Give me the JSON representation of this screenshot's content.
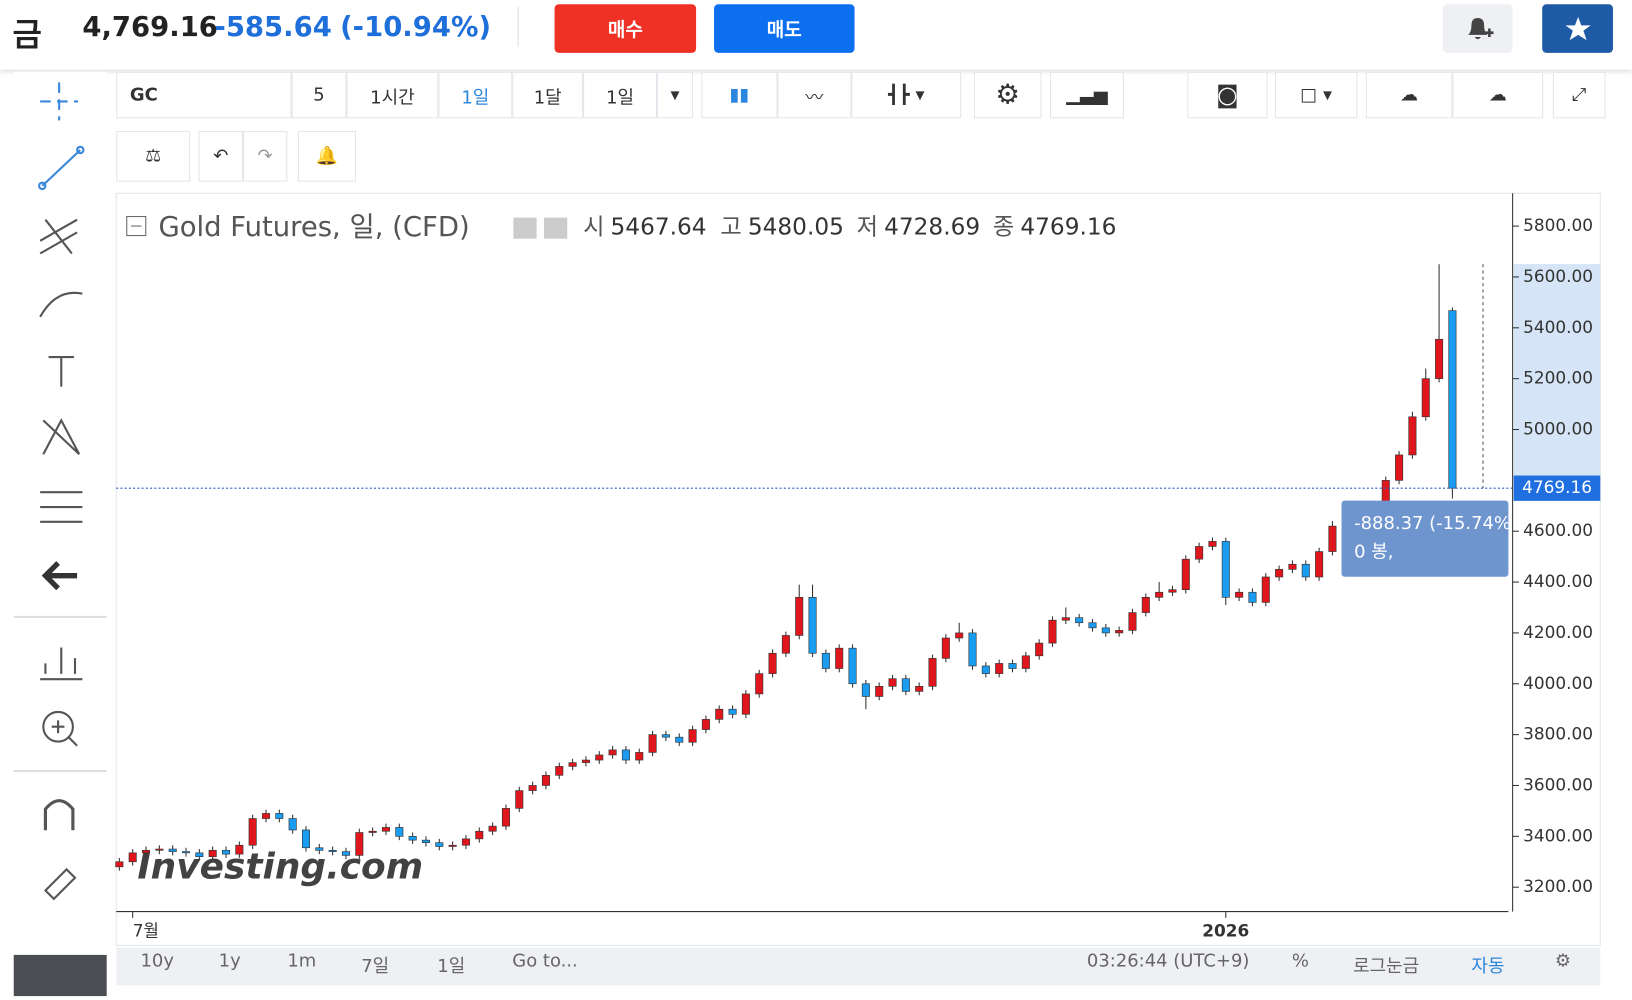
{
  "header": {
    "symbol": "금",
    "price": "4,769.16",
    "change": "-585.64",
    "change_pct": "(-10.94%)",
    "buy": "매수",
    "sell": "매도"
  },
  "toolbar": {
    "symbol": "GC",
    "items": [
      "5",
      "1시간",
      "1일",
      "1달",
      "1일"
    ]
  },
  "bottom_bar": {
    "ranges": [
      "10y",
      "1y",
      "1m",
      "7일",
      "1일",
      "Go to..."
    ],
    "time": "03:26:44 (UTC+9)",
    "options": [
      "%",
      "로그눈금",
      "자동"
    ]
  },
  "chart_data": {
    "type": "candlestick",
    "title": "Gold Futures, 일, (CFD)",
    "watermark": "Investing.com",
    "legend_labels": [
      "시",
      "고",
      "저",
      "종"
    ],
    "up_color": "#e0161d",
    "down_color": "#1a9cf0",
    "ylim": [
      3104,
      5929
    ],
    "yticks": [
      {
        "value": 3200,
        "label": "3200.00"
      },
      {
        "value": 3400,
        "label": "3400.00"
      },
      {
        "value": 3600,
        "label": "3600.00"
      },
      {
        "value": 3800,
        "label": "3800.00"
      },
      {
        "value": 4000,
        "label": "4000.00"
      },
      {
        "value": 4200,
        "label": "4200.00"
      },
      {
        "value": 4400,
        "label": "4400.00"
      },
      {
        "value": 4600,
        "label": "4600.00"
      },
      {
        "value": 5000,
        "label": "5000.00"
      },
      {
        "value": 5200,
        "label": "5200.00"
      },
      {
        "value": 5400,
        "label": "5400.00"
      },
      {
        "value": 5600,
        "label": "5600.00"
      },
      {
        "value": 5800,
        "label": "5800.00"
      }
    ],
    "x_labels": [
      {
        "index": 1,
        "label": "7월"
      },
      {
        "index": 83,
        "label": "2026"
      }
    ],
    "measure": {
      "change": "-888.37 (-15.74%",
      "bars": "0 봉,"
    },
    "open": [
      3280,
      3300,
      3335,
      3345,
      3350,
      3340,
      3335,
      3320,
      3345,
      3330,
      3365,
      3470,
      3490,
      3470,
      3425,
      3355,
      3345,
      3340,
      3325,
      3415,
      3420,
      3435,
      3400,
      3385,
      3375,
      3360,
      3365,
      3390,
      3420,
      3440,
      3510,
      3580,
      3600,
      3640,
      3675,
      3690,
      3700,
      3720,
      3740,
      3700,
      3730,
      3800,
      3790,
      3770,
      3820,
      3860,
      3900,
      3880,
      3960,
      4040,
      4120,
      4190,
      4340,
      4120,
      4060,
      4140,
      4000,
      3950,
      3990,
      4020,
      3970,
      3990,
      4100,
      4180,
      4200,
      4070,
      4040,
      4080,
      4060,
      4110,
      4160,
      4250,
      4260,
      4240,
      4220,
      4200,
      4210,
      4280,
      4340,
      4360,
      4370,
      4490,
      4540,
      4560,
      4340,
      4360,
      4320,
      4420,
      4450,
      4470,
      4420,
      4520,
      4620,
      4640,
      4650,
      4600,
      4800,
      4900,
      5050,
      5200,
      5467.64
    ],
    "high": [
      3315,
      3350,
      3360,
      3365,
      3365,
      3355,
      3350,
      3360,
      3360,
      3380,
      3485,
      3505,
      3505,
      3485,
      3440,
      3370,
      3360,
      3355,
      3430,
      3435,
      3450,
      3450,
      3415,
      3400,
      3390,
      3380,
      3405,
      3435,
      3455,
      3525,
      3595,
      3615,
      3655,
      3690,
      3705,
      3715,
      3735,
      3755,
      3755,
      3745,
      3815,
      3815,
      3805,
      3835,
      3875,
      3915,
      3915,
      3975,
      4055,
      4135,
      4205,
      4390,
      4390,
      4135,
      4155,
      4155,
      4015,
      4005,
      4035,
      4035,
      4005,
      4115,
      4195,
      4240,
      4215,
      4085,
      4095,
      4095,
      4125,
      4175,
      4265,
      4300,
      4275,
      4255,
      4235,
      4225,
      4295,
      4355,
      4400,
      4385,
      4505,
      4555,
      4575,
      4575,
      4375,
      4375,
      4435,
      4465,
      4485,
      4485,
      4535,
      4640,
      4655,
      4665,
      4665,
      4815,
      4915,
      5070,
      5240,
      5650,
      5480.05
    ],
    "low": [
      3265,
      3285,
      3320,
      3330,
      3325,
      3320,
      3305,
      3305,
      3315,
      3315,
      3350,
      3455,
      3455,
      3410,
      3340,
      3330,
      3325,
      3310,
      3310,
      3400,
      3405,
      3385,
      3370,
      3360,
      3345,
      3345,
      3350,
      3375,
      3405,
      3425,
      3495,
      3565,
      3585,
      3625,
      3660,
      3675,
      3685,
      3705,
      3685,
      3685,
      3715,
      3775,
      3755,
      3755,
      3805,
      3845,
      3865,
      3865,
      3945,
      4025,
      4105,
      4175,
      4105,
      4045,
      4045,
      3985,
      3900,
      3935,
      3975,
      3955,
      3955,
      3975,
      4085,
      4165,
      4055,
      4025,
      4025,
      4045,
      4045,
      4095,
      4145,
      4235,
      4225,
      4205,
      4185,
      4185,
      4195,
      4265,
      4325,
      4345,
      4355,
      4475,
      4525,
      4310,
      4325,
      4305,
      4305,
      4405,
      4435,
      4405,
      4405,
      4505,
      4605,
      4625,
      4585,
      4585,
      4785,
      4885,
      5035,
      5185,
      4728.69
    ],
    "close": [
      3300,
      3335,
      3345,
      3350,
      3340,
      3335,
      3320,
      3345,
      3330,
      3365,
      3470,
      3490,
      3470,
      3425,
      3355,
      3345,
      3340,
      3325,
      3415,
      3420,
      3435,
      3400,
      3385,
      3375,
      3360,
      3365,
      3390,
      3420,
      3440,
      3510,
      3580,
      3600,
      3640,
      3675,
      3690,
      3700,
      3720,
      3740,
      3700,
      3730,
      3800,
      3790,
      3770,
      3820,
      3860,
      3900,
      3880,
      3960,
      4040,
      4120,
      4190,
      4340,
      4120,
      4060,
      4140,
      4000,
      3950,
      3990,
      4020,
      3970,
      3990,
      4100,
      4180,
      4200,
      4070,
      4040,
      4080,
      4060,
      4110,
      4160,
      4250,
      4260,
      4240,
      4220,
      4200,
      4210,
      4280,
      4340,
      4360,
      4370,
      4490,
      4540,
      4560,
      4340,
      4360,
      4320,
      4420,
      4450,
      4470,
      4420,
      4520,
      4620,
      4640,
      4650,
      4600,
      4800,
      4900,
      5050,
      5200,
      5354.8,
      4769.16
    ]
  }
}
